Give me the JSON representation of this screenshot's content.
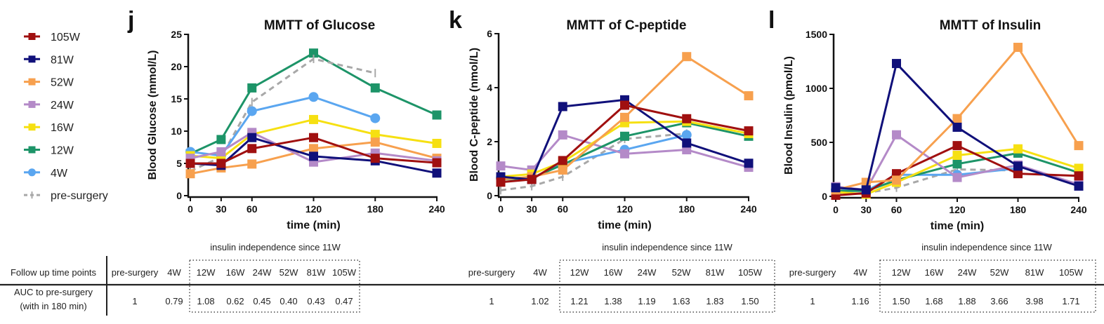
{
  "legend": [
    {
      "name": "105W",
      "color": "#a01010",
      "marker": "square"
    },
    {
      "name": "81W",
      "color": "#10107a",
      "marker": "square"
    },
    {
      "name": "52W",
      "color": "#f7a04e",
      "marker": "square"
    },
    {
      "name": "24W",
      "color": "#b48ac8",
      "marker": "square"
    },
    {
      "name": "16W",
      "color": "#f6e012",
      "marker": "square"
    },
    {
      "name": "12W",
      "color": "#1d9468",
      "marker": "square"
    },
    {
      "name": "4W",
      "color": "#5aa6f0",
      "marker": "circle"
    },
    {
      "name": "pre-surgery",
      "color": "#a8a8a8",
      "marker": "dash",
      "dashed": true
    }
  ],
  "chart_data": [
    {
      "panel_label": "j",
      "type": "line",
      "title": "MMTT of Glucose",
      "xlabel": "time (min)",
      "ylabel": "Blood Glucose (mmol/L)",
      "x": [
        0,
        30,
        60,
        120,
        180,
        240
      ],
      "xticks": [
        0,
        30,
        60,
        120,
        180,
        240
      ],
      "ylim": [
        0,
        25
      ],
      "yticks": [
        0,
        5,
        10,
        15,
        20,
        25
      ],
      "grid": false,
      "series": [
        {
          "name": "12W",
          "values": [
            6.5,
            8.7,
            16.7,
            22.1,
            16.7,
            12.5
          ]
        },
        {
          "name": "pre-surgery",
          "values": [
            3.8,
            6.0,
            14.5,
            21.2,
            19.0,
            null
          ]
        },
        {
          "name": "4W",
          "values": [
            6.8,
            6.2,
            13.1,
            15.3,
            12.0,
            null
          ]
        },
        {
          "name": "16W",
          "values": [
            6.2,
            5.8,
            9.5,
            11.8,
            9.5,
            8.1
          ]
        },
        {
          "name": "52W",
          "values": [
            3.4,
            4.3,
            4.9,
            7.3,
            8.3,
            5.8
          ]
        },
        {
          "name": "24W",
          "values": [
            5.8,
            6.8,
            9.8,
            5.2,
            6.6,
            5.4
          ]
        },
        {
          "name": "81W",
          "values": [
            5.0,
            4.7,
            9.0,
            6.1,
            5.4,
            3.5
          ]
        },
        {
          "name": "105W",
          "values": [
            5.0,
            5.0,
            7.3,
            9.0,
            5.8,
            5.1
          ]
        }
      ]
    },
    {
      "panel_label": "k",
      "type": "line",
      "title": "MMTT of C-peptide",
      "xlabel": "time (min)",
      "ylabel": "Blood C-peptide (nmol/L)",
      "x": [
        0,
        30,
        60,
        120,
        180,
        240
      ],
      "xticks": [
        0,
        30,
        60,
        120,
        180,
        240
      ],
      "ylim": [
        0,
        6
      ],
      "yticks": [
        0,
        2,
        4,
        6
      ],
      "grid": false,
      "series": [
        {
          "name": "pre-surgery",
          "values": [
            0.2,
            0.35,
            0.7,
            2.1,
            2.3,
            null
          ]
        },
        {
          "name": "4W",
          "values": [
            0.65,
            0.65,
            1.2,
            1.7,
            2.25,
            null
          ]
        },
        {
          "name": "24W",
          "values": [
            1.1,
            0.95,
            2.25,
            1.55,
            1.7,
            1.05
          ]
        },
        {
          "name": "12W",
          "values": [
            0.6,
            0.65,
            1.15,
            2.2,
            2.7,
            2.2
          ]
        },
        {
          "name": "16W",
          "values": [
            0.7,
            0.8,
            1.25,
            2.7,
            2.75,
            2.3
          ]
        },
        {
          "name": "52W",
          "values": [
            0.6,
            0.7,
            0.95,
            2.9,
            5.15,
            3.7
          ]
        },
        {
          "name": "81W",
          "values": [
            0.7,
            0.6,
            3.3,
            3.55,
            1.95,
            1.2
          ]
        },
        {
          "name": "105W",
          "values": [
            0.5,
            0.6,
            1.3,
            3.35,
            2.85,
            2.4
          ]
        }
      ]
    },
    {
      "panel_label": "l",
      "type": "line",
      "title": "MMTT of Insulin",
      "xlabel": "time (min)",
      "ylabel": "Blood Insulin (pmol/L)",
      "x": [
        0,
        30,
        60,
        120,
        180,
        240
      ],
      "xticks": [
        0,
        30,
        60,
        120,
        180,
        240
      ],
      "ylim": [
        0,
        1500
      ],
      "yticks": [
        0,
        500,
        1000,
        1500
      ],
      "grid": false,
      "series": [
        {
          "name": "pre-surgery",
          "values": [
            20,
            30,
            80,
            250,
            240,
            null
          ]
        },
        {
          "name": "4W",
          "values": [
            60,
            50,
            200,
            200,
            260,
            null
          ]
        },
        {
          "name": "12W",
          "values": [
            50,
            50,
            150,
            300,
            400,
            220
          ]
        },
        {
          "name": "16W",
          "values": [
            40,
            20,
            130,
            380,
            440,
            260
          ]
        },
        {
          "name": "24W",
          "values": [
            90,
            60,
            570,
            175,
            290,
            110
          ]
        },
        {
          "name": "105W",
          "values": [
            10,
            30,
            210,
            470,
            210,
            190
          ]
        },
        {
          "name": "52W",
          "values": [
            60,
            130,
            150,
            720,
            1380,
            470
          ]
        },
        {
          "name": "81W",
          "values": [
            80,
            60,
            1230,
            640,
            280,
            95
          ]
        }
      ]
    }
  ],
  "tables": [
    {
      "row_header": "Follow up time points",
      "row_label": [
        "AUC to pre-surgery",
        "(with in 180 min)"
      ],
      "group_label": "insulin independence since 11W",
      "columns": [
        "pre-surgery",
        "4W",
        "12W",
        "16W",
        "24W",
        "52W",
        "81W",
        "105W"
      ],
      "values": [
        "1",
        "0.79",
        "1.08",
        "0.62",
        "0.45",
        "0.40",
        "0.43",
        "0.47"
      ]
    },
    {
      "group_label": "insulin independence since 11W",
      "columns": [
        "pre-surgery",
        "4W",
        "12W",
        "16W",
        "24W",
        "52W",
        "81W",
        "105W"
      ],
      "values": [
        "1",
        "1.02",
        "1.21",
        "1.38",
        "1.19",
        "1.63",
        "1.83",
        "1.50"
      ]
    },
    {
      "group_label": "insulin independence since 11W",
      "columns": [
        "pre-surgery",
        "4W",
        "12W",
        "16W",
        "24W",
        "52W",
        "81W",
        "105W"
      ],
      "values": [
        "1",
        "1.16",
        "1.50",
        "1.68",
        "1.88",
        "3.66",
        "3.98",
        "1.71"
      ]
    }
  ]
}
